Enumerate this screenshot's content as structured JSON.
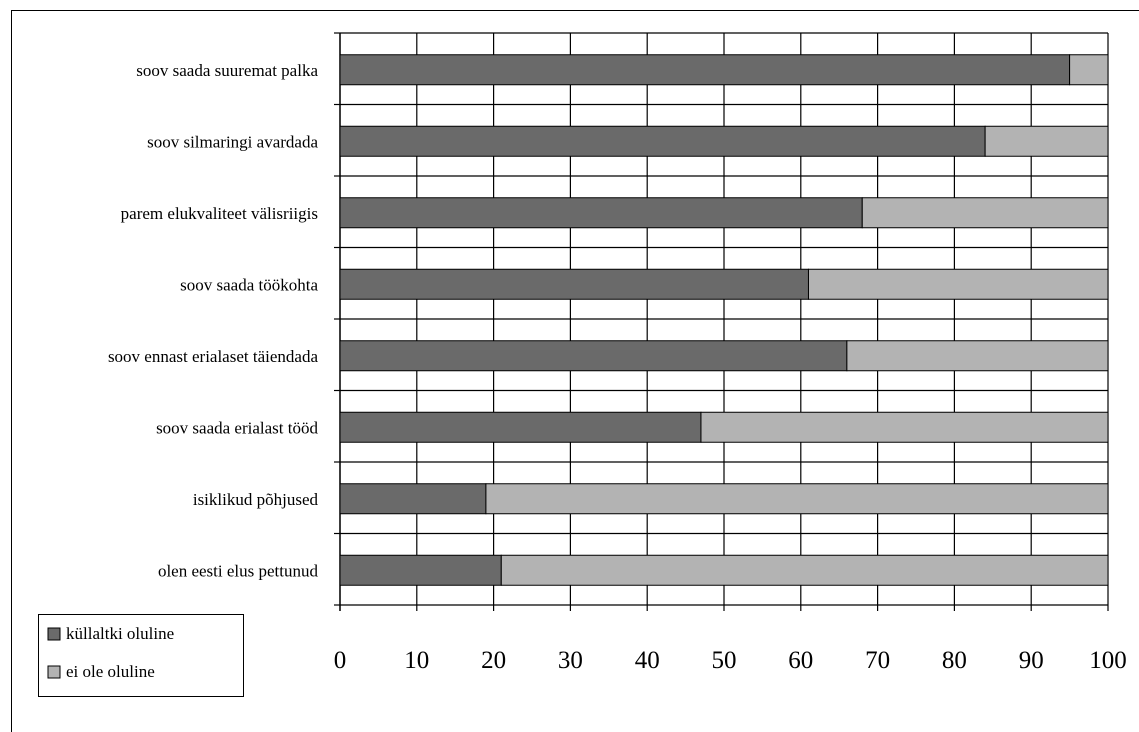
{
  "chart_data": {
    "type": "bar",
    "orientation": "horizontal",
    "stacked": true,
    "title": "",
    "categories": [
      "soov saada suuremat palka",
      "soov silmaringi avardada",
      "parem elukvaliteet välisriigis",
      "soov saada töökohta",
      "soov ennast erialaset täiendada",
      "soov saada erialast tööd",
      "isiklikud põhjused",
      "olen eesti elus pettunud"
    ],
    "series": [
      {
        "name": "küllaltki oluline",
        "color": "#6a6a6a",
        "values": [
          95,
          84,
          68,
          61,
          66,
          47,
          19,
          21
        ]
      },
      {
        "name": "ei ole oluline",
        "color": "#b3b3b3",
        "values": [
          5,
          16,
          32,
          39,
          34,
          53,
          81,
          79
        ]
      }
    ],
    "xlim": [
      0,
      100
    ],
    "xticks": [
      "0",
      "10",
      "20",
      "30",
      "40",
      "50",
      "60",
      "70",
      "80",
      "90",
      "100"
    ],
    "grid": true,
    "legend_position": "bottom-left"
  }
}
